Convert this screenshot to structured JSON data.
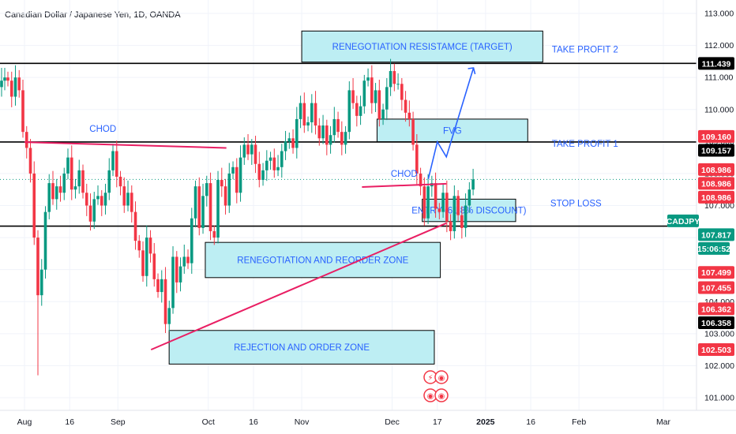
{
  "chart_data": {
    "type": "candlestick",
    "title": "Canadian Dollar / Japanese Yen, 1D, OANDA",
    "symbol": "CADJPY",
    "y_ticks": [
      "113.000",
      "112.000",
      "111.000",
      "110.000",
      "109.000",
      "108.000",
      "107.000",
      "106.000",
      "105.000",
      "104.000",
      "103.000",
      "102.000",
      "101.000"
    ],
    "y_tick_values": [
      113,
      112,
      111,
      110,
      109,
      108,
      107,
      106,
      105,
      104,
      103,
      102,
      101
    ],
    "ylim": [
      100.6,
      113.2
    ],
    "x_ticks": [
      "Aug",
      "16",
      "Sep",
      "Oct",
      "16",
      "Nov",
      "Dec",
      "17",
      "2025",
      "16",
      "Feb",
      "Mar"
    ],
    "x_tick_days": [
      0,
      15,
      31,
      61,
      76,
      92,
      122,
      137,
      153,
      168,
      184,
      212
    ],
    "x_start": "2024-07-31",
    "bullish_color": "#089981",
    "bearish_color": "#f23645",
    "closes": [
      110.9,
      110.4,
      111.0,
      110.6,
      109.3,
      108.8,
      108.0,
      106.0,
      104.2,
      105.0,
      106.8,
      107.7,
      107.2,
      107.6,
      107.4,
      108.0,
      108.5,
      107.5,
      107.6,
      108.1,
      107.4,
      107.0,
      106.5,
      107.2,
      107.3,
      107.0,
      107.4,
      108.1,
      108.7,
      107.9,
      107.6,
      107.0,
      107.4,
      106.8,
      105.9,
      105.6,
      104.8,
      106.0,
      105.5,
      104.7,
      104.3,
      104.7,
      103.3,
      103.8,
      105.4,
      104.6,
      105.1,
      105.4,
      105.2,
      106.6,
      107.6,
      106.3,
      107.3,
      107.7,
      106.2,
      106.0,
      107.8,
      107.6,
      107.0,
      108.0,
      108.2,
      107.4,
      108.5,
      108.9,
      108.6,
      108.9,
      108.3,
      107.8,
      108.1,
      108.4,
      108.5,
      108.1,
      108.2,
      108.7,
      109.0,
      109.1,
      108.8,
      109.7,
      110.2,
      109.5,
      109.6,
      110.2,
      109.5,
      109.1,
      109.5,
      108.9,
      109.2,
      109.7,
      109.3,
      108.9,
      109.3,
      110.6,
      110.2,
      109.8,
      110.1,
      110.9,
      111.0,
      110.2,
      110.6,
      109.7,
      110.0,
      110.7,
      111.2,
      110.8,
      110.8,
      110.3,
      109.9,
      109.7,
      108.9,
      108.0,
      107.6,
      106.6,
      107.6,
      107.7,
      106.9,
      106.8,
      107.4,
      106.5,
      106.2,
      107.3,
      106.7,
      106.3,
      107.0,
      107.5,
      107.817
    ],
    "extra_candles": [
      [
        110.7,
        111.3,
        110.4,
        110.9
      ],
      [
        110.9,
        111.3,
        110.6,
        111.0
      ]
    ],
    "price_tags": [
      {
        "label": "111.439",
        "value": 111.439,
        "bg": "#000000"
      },
      {
        "label": "109.160",
        "value": 109.16,
        "bg": "#f23645"
      },
      {
        "label": "109.157",
        "value": 109.157,
        "bg": "#000000"
      },
      {
        "label": "108.986",
        "value": 108.986,
        "bg": "#f23645"
      },
      {
        "label": "108.986",
        "value": 108.986,
        "bg": "#f23645"
      },
      {
        "label": "108.986",
        "value": 108.986,
        "bg": "#f23645"
      },
      {
        "label": "CADJPY",
        "value": 107.817,
        "bg": "#089981"
      },
      {
        "label": "107.817",
        "value": 107.817,
        "bg": "#089981"
      },
      {
        "label": "15:06:52",
        "value": 107.817,
        "bg": "#089981"
      },
      {
        "label": "107.499",
        "value": 107.499,
        "bg": "#f23645"
      },
      {
        "label": "107.455",
        "value": 107.455,
        "bg": "#f23645"
      },
      {
        "label": "106.362",
        "value": 106.362,
        "bg": "#f23645"
      },
      {
        "label": "106.358",
        "value": 106.358,
        "bg": "#000000"
      },
      {
        "label": "102.503",
        "value": 102.503,
        "bg": "#f23645"
      }
    ],
    "horizontal_lines": [
      {
        "name": "take-profit-2-line",
        "value": 111.439,
        "color": "#000000"
      },
      {
        "name": "take-profit-1-line",
        "value": 108.986,
        "color": "#000000"
      },
      {
        "name": "stop-loss-line",
        "value": 106.358,
        "color": "#000000"
      }
    ],
    "zones": [
      {
        "name": "renegotiation-resistance-zone",
        "label": "RENEGOTIATION RESISTAMCE (TARGET)",
        "x1_day": 92,
        "x2_day": 172,
        "y1": 112.45,
        "y2": 111.48
      },
      {
        "name": "fvg-zone",
        "label": "FVG",
        "x1_day": 117,
        "x2_day": 167,
        "y1": 109.7,
        "y2": 108.99
      },
      {
        "name": "entry-zone",
        "label": "ENTRY (61.8% DISCOUNT)",
        "x1_day": 132,
        "x2_day": 163,
        "y1": 107.2,
        "y2": 106.5
      },
      {
        "name": "renegotiation-reorder-zone",
        "label": "RENEGOTIATION AND REORDER ZONE",
        "x1_day": 60,
        "x2_day": 138,
        "y1": 105.85,
        "y2": 104.75
      },
      {
        "name": "rejection-order-zone",
        "label": "REJECTION AND ORDER ZONE",
        "x1_day": 48,
        "x2_day": 136,
        "y1": 103.1,
        "y2": 102.05
      }
    ],
    "annotations": [
      {
        "label": "CHOD",
        "day": 26,
        "value": 109.4
      },
      {
        "label": "TAKE PROFIT 2",
        "day": 186,
        "value": 111.88
      },
      {
        "label": "TAKE PROFIT 1",
        "day": 186,
        "value": 108.93
      },
      {
        "label": "CHOD",
        "day": 126,
        "value": 108.0
      },
      {
        "label": "STOP LOSS",
        "day": 183,
        "value": 107.08
      }
    ],
    "trendlines": [
      {
        "name": "support-trendline",
        "color": "#e91e63",
        "points": [
          [
            42,
            102.5
          ],
          [
            140,
            106.45
          ]
        ]
      },
      {
        "name": "descending-trendline",
        "color": "#e91e63",
        "points": [
          [
            0,
            108.98
          ],
          [
            67,
            108.8
          ]
        ]
      },
      {
        "name": "entry-level-line",
        "color": "#e91e63",
        "points": [
          [
            112,
            107.58
          ],
          [
            140,
            107.68
          ]
        ]
      }
    ],
    "projection": [
      [
        134,
        107.83
      ],
      [
        137,
        108.99
      ],
      [
        140,
        108.52
      ],
      [
        149,
        111.3
      ]
    ]
  }
}
